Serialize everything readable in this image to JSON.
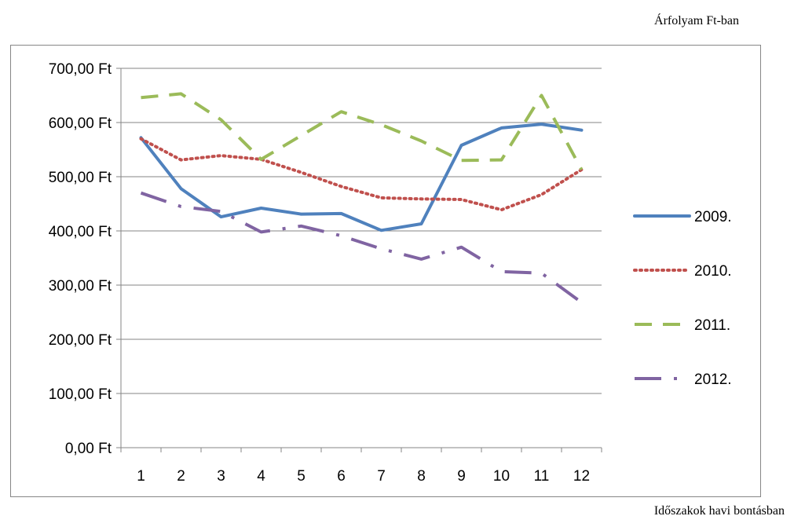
{
  "captions": {
    "top": "Árfolyam Ft-ban",
    "bottom": "Időszakok havi bontásban"
  },
  "chart_data": {
    "type": "line",
    "title": "",
    "xlabel": "Időszakok havi bontásban",
    "ylabel": "Árfolyam Ft-ban",
    "categories": [
      "1",
      "2",
      "3",
      "4",
      "5",
      "6",
      "7",
      "8",
      "9",
      "10",
      "11",
      "12"
    ],
    "ylim": [
      0,
      700
    ],
    "yticks": [
      0,
      100,
      200,
      300,
      400,
      500,
      600,
      700
    ],
    "ytick_labels": [
      "0,00 Ft",
      "100,00 Ft",
      "200,00 Ft",
      "300,00 Ft",
      "400,00 Ft",
      "500,00 Ft",
      "600,00 Ft",
      "700,00 Ft"
    ],
    "grid": true,
    "legend_position": "right",
    "series": [
      {
        "name": "2009.",
        "color": "#4F81BD",
        "style": "solid",
        "values": [
          572,
          478,
          426,
          442,
          431,
          432,
          401,
          413,
          558,
          590,
          597,
          586
        ]
      },
      {
        "name": "2010.",
        "color": "#C0504D",
        "style": "dotted",
        "values": [
          570,
          531,
          539,
          532,
          508,
          482,
          461,
          459,
          458,
          439,
          467,
          513
        ]
      },
      {
        "name": "2011.",
        "color": "#9BBB59",
        "style": "dashed",
        "values": [
          646,
          653,
          605,
          532,
          576,
          620,
          596,
          566,
          530,
          531,
          650,
          513
        ]
      },
      {
        "name": "2012.",
        "color": "#8064A2",
        "style": "dash-dot",
        "values": [
          470,
          445,
          436,
          398,
          409,
          391,
          367,
          348,
          370,
          325,
          322,
          268
        ]
      }
    ]
  }
}
